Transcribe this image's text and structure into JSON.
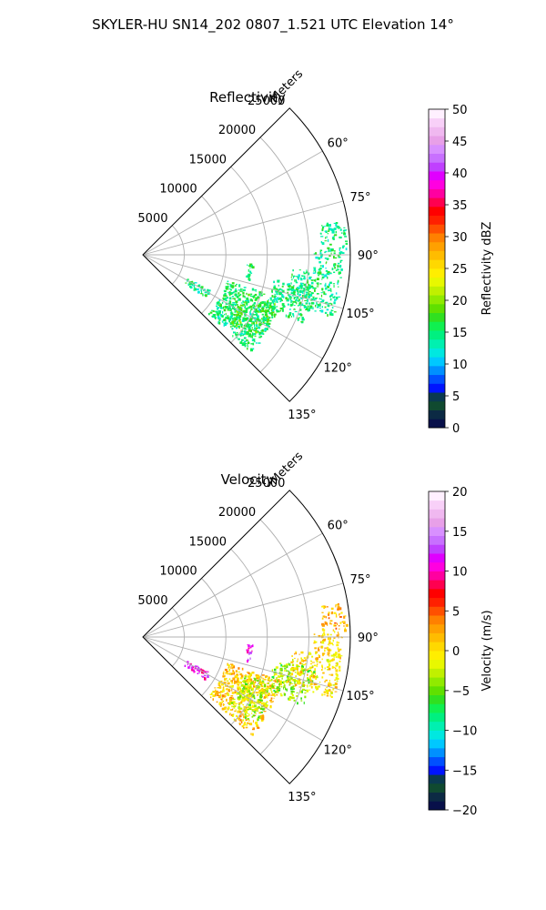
{
  "title": "SKYLER-HU  SN14_202  0807_1.521 UTC Elevation 14°",
  "chart_data": [
    {
      "type": "polar-sector",
      "title": "Reflectivity",
      "range_label": "Meters",
      "range_ticks": [
        5000,
        10000,
        15000,
        20000,
        25000
      ],
      "range_tick_labels": [
        "5000",
        "10000",
        "15000",
        "20000",
        "25000"
      ],
      "rmax": 25000,
      "azimuth_range_deg": [
        45,
        135
      ],
      "azimuth_ticks": [
        60,
        75,
        90,
        105,
        120,
        135
      ],
      "azimuth_tick_labels": [
        "60°",
        "75°",
        "90°",
        "105°",
        "120°",
        "135°"
      ],
      "grid": true,
      "colorbar": {
        "label": "Reflectivity dBZ",
        "vmin": 0,
        "vmax": 50,
        "ticks": [
          0,
          5,
          10,
          15,
          20,
          25,
          30,
          35,
          40,
          45,
          50
        ],
        "tick_labels": [
          "0",
          "5",
          "10",
          "15",
          "20",
          "25",
          "30",
          "35",
          "40",
          "45",
          "50"
        ],
        "colors": [
          "#08104a",
          "#0c2a44",
          "#104a30",
          "#0a3a50",
          "#0014ff",
          "#0050ff",
          "#0090ff",
          "#00c8ff",
          "#00e8e0",
          "#00f0b0",
          "#00f080",
          "#10f050",
          "#30e020",
          "#60e000",
          "#90ea00",
          "#c0f000",
          "#e8f800",
          "#ffee00",
          "#ffd800",
          "#ffbc00",
          "#ffa000",
          "#ff8000",
          "#ff5000",
          "#ff2000",
          "#ff0000",
          "#ff0050",
          "#ff00a0",
          "#ff00e0",
          "#e000ff",
          "#c040ff",
          "#c870ff",
          "#d890ff",
          "#e8a0e8",
          "#f0b8f0",
          "#f8d0f8",
          "#fff0ff"
        ]
      },
      "data_regions": [
        {
          "az": [
            107,
            132
          ],
          "r": [
            10500,
            17500
          ],
          "value": 15
        },
        {
          "az": [
            110,
            128
          ],
          "r": [
            13000,
            17000
          ],
          "value": 17
        },
        {
          "az": [
            100,
            113
          ],
          "r": [
            16000,
            21000
          ],
          "value": 15
        },
        {
          "az": [
            95,
            108
          ],
          "r": [
            18000,
            24000
          ],
          "value": 15
        },
        {
          "az": [
            88,
            96
          ],
          "r": [
            20500,
            24000
          ],
          "value": 15
        },
        {
          "az": [
            80,
            88
          ],
          "r": [
            21500,
            24500
          ],
          "value": 15
        },
        {
          "az": [
            93,
            103
          ],
          "r": [
            12500,
            13200
          ],
          "value": 15
        },
        {
          "az": [
            118,
            124
          ],
          "r": [
            6000,
            9000
          ],
          "value": 15
        }
      ]
    },
    {
      "type": "polar-sector",
      "title": "Velocity",
      "range_label": "Meters",
      "range_ticks": [
        5000,
        10000,
        15000,
        20000,
        25000
      ],
      "range_tick_labels": [
        "5000",
        "10000",
        "15000",
        "20000",
        "25000"
      ],
      "rmax": 25000,
      "azimuth_range_deg": [
        45,
        135
      ],
      "azimuth_ticks": [
        60,
        75,
        90,
        105,
        120,
        135
      ],
      "azimuth_tick_labels": [
        "60°",
        "75°",
        "90°",
        "105°",
        "120°",
        "135°"
      ],
      "grid": true,
      "colorbar": {
        "label": "Velocity (m/s)",
        "vmin": -20,
        "vmax": 20,
        "ticks": [
          -20,
          -15,
          -10,
          -5,
          0,
          5,
          10,
          15,
          20
        ],
        "tick_labels": [
          "−20",
          "−15",
          "−10",
          "−5",
          "0",
          "5",
          "10",
          "15",
          "20"
        ],
        "colors": [
          "#08104a",
          "#0c2a44",
          "#104a30",
          "#0a3a50",
          "#0014ff",
          "#0050ff",
          "#0090ff",
          "#00c8ff",
          "#00e8e0",
          "#00f0b0",
          "#00f080",
          "#10f050",
          "#30e020",
          "#60e000",
          "#90ea00",
          "#c0f000",
          "#e8f800",
          "#ffee00",
          "#ffd800",
          "#ffbc00",
          "#ffa000",
          "#ff8000",
          "#ff5000",
          "#ff2000",
          "#ff0000",
          "#ff0050",
          "#ff00a0",
          "#ff00e0",
          "#e000ff",
          "#c040ff",
          "#c870ff",
          "#d890ff",
          "#e8a0e8",
          "#f0b8f0",
          "#f8d0f8",
          "#fff0ff"
        ]
      },
      "data_regions": [
        {
          "az": [
            107,
            132
          ],
          "r": [
            10500,
            17500
          ],
          "value": 1
        },
        {
          "az": [
            110,
            128
          ],
          "r": [
            13000,
            17000
          ],
          "value": -3
        },
        {
          "az": [
            100,
            113
          ],
          "r": [
            16000,
            21000
          ],
          "value": -4
        },
        {
          "az": [
            95,
            108
          ],
          "r": [
            18000,
            24000
          ],
          "value": 0
        },
        {
          "az": [
            88,
            96
          ],
          "r": [
            20500,
            24000
          ],
          "value": 1
        },
        {
          "az": [
            80,
            88
          ],
          "r": [
            21500,
            24500
          ],
          "value": 2
        },
        {
          "az": [
            93,
            103
          ],
          "r": [
            12500,
            13200
          ],
          "value": 12
        },
        {
          "az": [
            118,
            124
          ],
          "r": [
            6000,
            9000
          ],
          "value": 11
        }
      ]
    }
  ]
}
